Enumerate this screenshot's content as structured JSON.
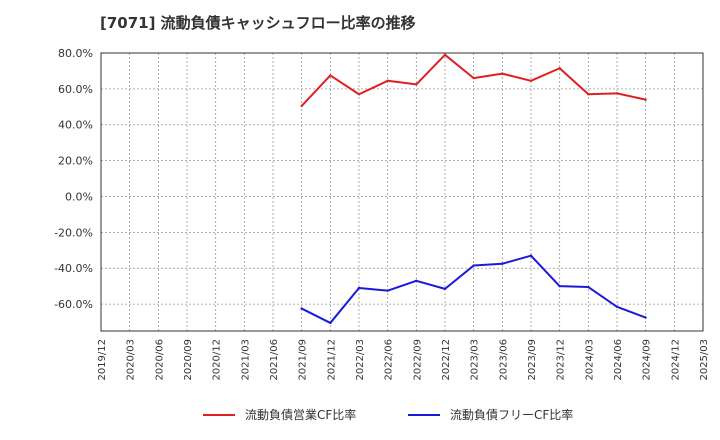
{
  "chart_data": {
    "type": "line",
    "title": "[7071]  流動負債キャッシュフロー比率の推移",
    "xlabel": "",
    "ylabel": "",
    "ylim": [
      -75,
      80
    ],
    "y_ticks": [
      80,
      60,
      40,
      20,
      0,
      -20,
      -40,
      -60
    ],
    "y_tick_labels": [
      "80.0%",
      "60.0%",
      "40.0%",
      "20.0%",
      "0.0%",
      "-20.0%",
      "-40.0%",
      "-60.0%"
    ],
    "categories": [
      "2019/12",
      "2020/03",
      "2020/06",
      "2020/09",
      "2020/12",
      "2021/03",
      "2021/06",
      "2021/09",
      "2021/12",
      "2022/03",
      "2022/06",
      "2022/09",
      "2022/12",
      "2023/03",
      "2023/06",
      "2023/09",
      "2023/12",
      "2024/03",
      "2024/06",
      "2024/09",
      "2024/12",
      "2025/03"
    ],
    "grid": true,
    "legend_position": "bottom",
    "series": [
      {
        "name": "流動負債営業CF比率",
        "color": "#e02020",
        "values": [
          null,
          null,
          null,
          null,
          null,
          null,
          null,
          50.5,
          67.5,
          57.0,
          64.5,
          62.5,
          79.0,
          66.0,
          68.5,
          64.5,
          71.5,
          57.0,
          57.5,
          54.0,
          null,
          null
        ]
      },
      {
        "name": "流動負債フリーCF比率",
        "color": "#1a1adb",
        "values": [
          null,
          null,
          null,
          null,
          null,
          null,
          null,
          -62.5,
          -70.5,
          -51.0,
          -52.5,
          -47.0,
          -51.5,
          -38.5,
          -37.5,
          -33.0,
          -50.0,
          -50.5,
          -61.5,
          -67.5,
          null,
          null
        ]
      }
    ]
  }
}
